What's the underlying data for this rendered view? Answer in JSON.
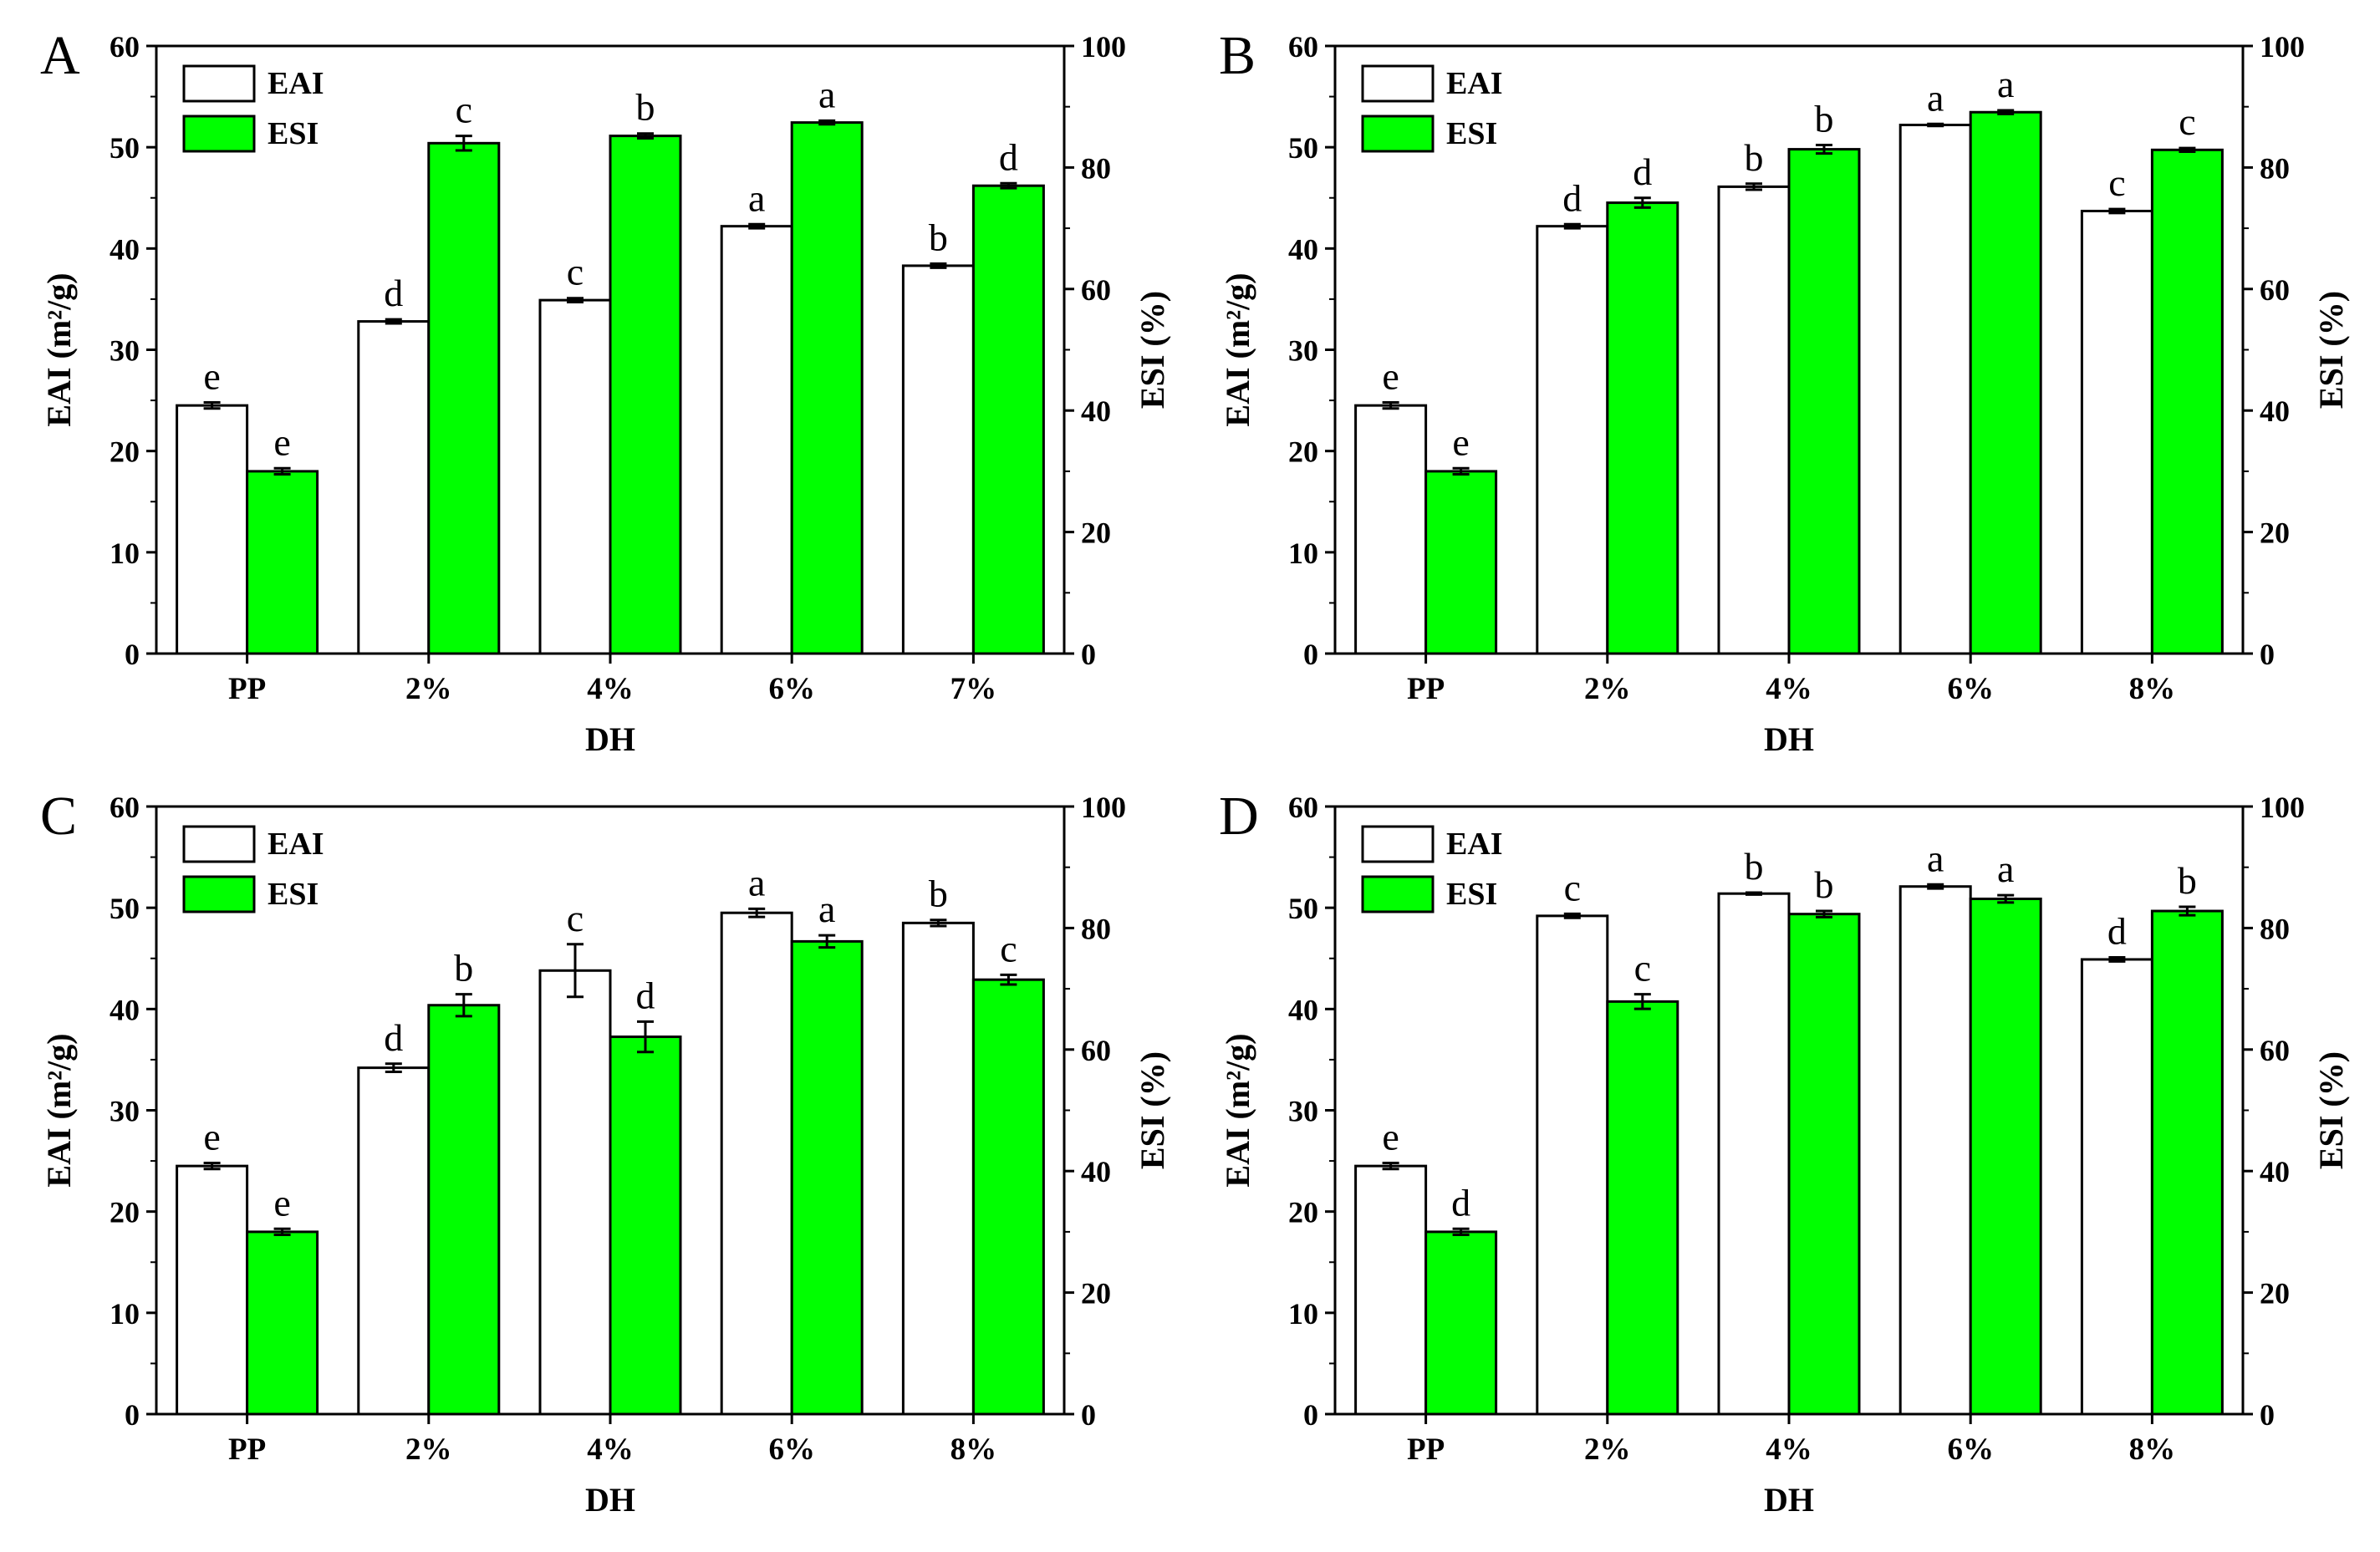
{
  "chart_data": [
    {
      "type": "bar",
      "panel": "A",
      "xlabel": "DH",
      "ylabel_left": "EAI (m²/g)",
      "ylabel_right": "ESI (%)",
      "ylim_left": [
        0,
        60
      ],
      "ylim_right": [
        0,
        100
      ],
      "yticks_left": [
        0,
        10,
        20,
        30,
        40,
        50,
        60
      ],
      "yticks_right": [
        0,
        20,
        40,
        60,
        80,
        100
      ],
      "legend_position": "top-left",
      "categories": [
        "PP",
        "2%",
        "4%",
        "6%",
        "7%"
      ],
      "series": [
        {
          "name": "EAI",
          "axis": "left",
          "color": "#ffffff",
          "values": [
            24.5,
            32.8,
            34.9,
            42.2,
            38.3
          ],
          "errors": [
            0.3,
            0.2,
            0.2,
            0.2,
            0.2
          ],
          "labels": [
            "e",
            "d",
            "c",
            "a",
            "b"
          ]
        },
        {
          "name": "ESI",
          "axis": "right",
          "color": "#00ff00",
          "values": [
            30.0,
            84.0,
            85.2,
            87.4,
            77.0
          ],
          "errors": [
            0.5,
            1.2,
            0.4,
            0.3,
            0.4
          ],
          "labels": [
            "e",
            "c",
            "b",
            "a",
            "d"
          ]
        }
      ]
    },
    {
      "type": "bar",
      "panel": "B",
      "xlabel": "DH",
      "ylabel_left": "EAI (m²/g)",
      "ylabel_right": "ESI (%)",
      "ylim_left": [
        0,
        60
      ],
      "ylim_right": [
        0,
        100
      ],
      "yticks_left": [
        0,
        10,
        20,
        30,
        40,
        50,
        60
      ],
      "yticks_right": [
        0,
        20,
        40,
        60,
        80,
        100
      ],
      "legend_position": "top-left",
      "categories": [
        "PP",
        "2%",
        "4%",
        "6%",
        "8%"
      ],
      "series": [
        {
          "name": "EAI",
          "axis": "left",
          "color": "#ffffff",
          "values": [
            24.5,
            42.2,
            46.1,
            52.2,
            43.7
          ],
          "errors": [
            0.3,
            0.2,
            0.3,
            0.1,
            0.2
          ],
          "labels": [
            "e",
            "d",
            "b",
            "a",
            "c"
          ]
        },
        {
          "name": "ESI",
          "axis": "right",
          "color": "#00ff00",
          "values": [
            30.0,
            74.2,
            83.0,
            89.1,
            82.9
          ],
          "errors": [
            0.5,
            0.8,
            0.7,
            0.3,
            0.3
          ],
          "labels": [
            "e",
            "d",
            "b",
            "a",
            "c"
          ]
        }
      ]
    },
    {
      "type": "bar",
      "panel": "C",
      "xlabel": "DH",
      "ylabel_left": "EAI (m²/g)",
      "ylabel_right": "ESI (%)",
      "ylim_left": [
        0,
        60
      ],
      "ylim_right": [
        0,
        100
      ],
      "yticks_left": [
        0,
        10,
        20,
        30,
        40,
        50,
        60
      ],
      "yticks_right": [
        0,
        20,
        40,
        60,
        80,
        100
      ],
      "legend_position": "top-left",
      "categories": [
        "PP",
        "2%",
        "4%",
        "6%",
        "8%"
      ],
      "series": [
        {
          "name": "EAI",
          "axis": "left",
          "color": "#ffffff",
          "values": [
            24.5,
            34.2,
            43.8,
            49.5,
            48.5
          ],
          "errors": [
            0.3,
            0.4,
            2.6,
            0.4,
            0.3
          ],
          "labels": [
            "e",
            "d",
            "c",
            "a",
            "b"
          ]
        },
        {
          "name": "ESI",
          "axis": "right",
          "color": "#00ff00",
          "values": [
            30.0,
            67.3,
            62.1,
            77.8,
            71.5
          ],
          "errors": [
            0.5,
            1.8,
            2.5,
            1.0,
            0.8
          ],
          "labels": [
            "e",
            "b",
            "d",
            "a",
            "c"
          ]
        }
      ]
    },
    {
      "type": "bar",
      "panel": "D",
      "xlabel": "DH",
      "ylabel_left": "EAI (m²/g)",
      "ylabel_right": "ESI (%)",
      "ylim_left": [
        0,
        60
      ],
      "ylim_right": [
        0,
        100
      ],
      "yticks_left": [
        0,
        10,
        20,
        30,
        40,
        50,
        60
      ],
      "yticks_right": [
        0,
        20,
        40,
        60,
        80,
        100
      ],
      "legend_position": "top-left",
      "categories": [
        "PP",
        "2%",
        "4%",
        "6%",
        "8%"
      ],
      "series": [
        {
          "name": "EAI",
          "axis": "left",
          "color": "#ffffff",
          "values": [
            24.5,
            49.2,
            51.4,
            52.1,
            44.9
          ],
          "errors": [
            0.3,
            0.2,
            0.1,
            0.2,
            0.2
          ],
          "labels": [
            "e",
            "c",
            "b",
            "a",
            "d"
          ]
        },
        {
          "name": "ESI",
          "axis": "right",
          "color": "#00ff00",
          "values": [
            30.0,
            67.9,
            82.3,
            84.8,
            82.8
          ],
          "errors": [
            0.5,
            1.2,
            0.5,
            0.6,
            0.7
          ],
          "labels": [
            "d",
            "c",
            "b",
            "a",
            "b"
          ]
        }
      ]
    }
  ]
}
